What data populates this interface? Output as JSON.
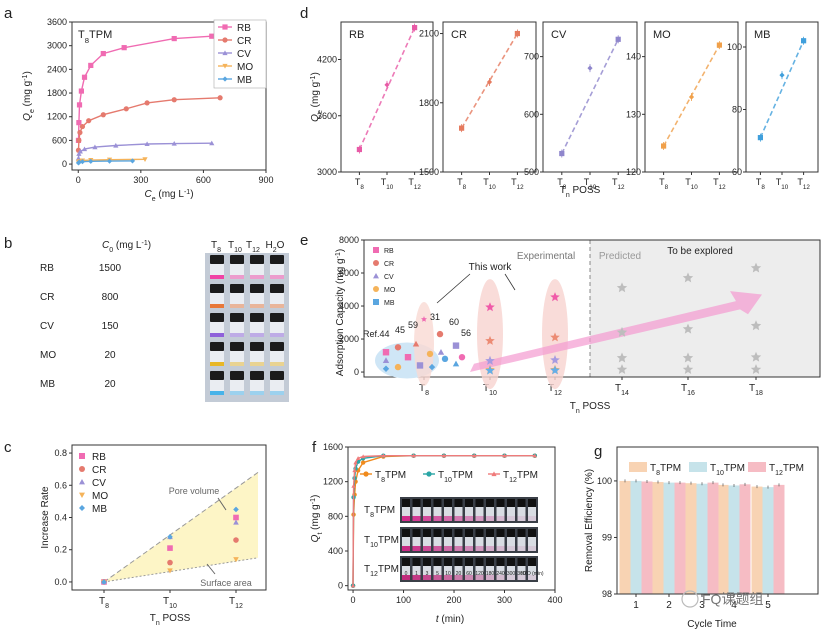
{
  "chart_data": [
    {
      "panel": "a",
      "type": "line",
      "title": "T8TPM",
      "xlabel": "Ce (mg L-1)",
      "ylabel": "Qe (mg g-1)",
      "xlim": [
        -30,
        900
      ],
      "ylim": [
        -150,
        3600
      ],
      "xticks": [
        0,
        300,
        600,
        900
      ],
      "yticks": [
        0,
        600,
        1200,
        1800,
        2400,
        3000,
        3600
      ],
      "series": [
        {
          "name": "RB",
          "color": "#f06bb2",
          "marker": "square",
          "x": [
            1,
            3,
            6,
            15,
            30,
            60,
            120,
            220,
            460,
            640
          ],
          "y": [
            600,
            1050,
            1500,
            1850,
            2200,
            2500,
            2800,
            2950,
            3180,
            3240
          ]
        },
        {
          "name": "CR",
          "color": "#e57a6e",
          "marker": "circle",
          "x": [
            1,
            3,
            8,
            20,
            50,
            120,
            230,
            330,
            460,
            680
          ],
          "y": [
            350,
            600,
            800,
            950,
            1100,
            1250,
            1400,
            1550,
            1630,
            1680
          ]
        },
        {
          "name": "CV",
          "color": "#9b91d6",
          "marker": "triangle",
          "x": [
            1,
            3,
            10,
            30,
            80,
            180,
            330,
            460,
            640
          ],
          "y": [
            150,
            260,
            320,
            380,
            430,
            470,
            510,
            520,
            530
          ]
        },
        {
          "name": "MO",
          "color": "#f5b35a",
          "marker": "triangle-down",
          "x": [
            1,
            5,
            20,
            60,
            150,
            320
          ],
          "y": [
            40,
            70,
            90,
            100,
            110,
            120
          ]
        },
        {
          "name": "MB",
          "color": "#5aa6e0",
          "marker": "diamond",
          "x": [
            1,
            5,
            20,
            60,
            150,
            260
          ],
          "y": [
            30,
            50,
            60,
            70,
            75,
            80
          ]
        }
      ]
    },
    {
      "panel": "d",
      "type": "scatter",
      "ylabel": "Qe (mg g-1)",
      "xlabel": "Tn POSS",
      "categories": [
        "T8",
        "T10",
        "T12"
      ],
      "subplots": [
        {
          "name": "RB",
          "color": "#e85aa6",
          "ylim": [
            3000,
            4600
          ],
          "yticks": [
            3000,
            3600,
            4200
          ],
          "values": [
            3240,
            3930,
            4540
          ]
        },
        {
          "name": "CR",
          "color": "#e57a5e",
          "ylim": [
            1500,
            2150
          ],
          "yticks": [
            1500,
            1800,
            2100
          ],
          "values": [
            1690,
            1890,
            2100
          ]
        },
        {
          "name": "CV",
          "color": "#8f86cc",
          "ylim": [
            500,
            760
          ],
          "yticks": [
            500,
            600,
            700
          ],
          "values": [
            532,
            680,
            730
          ]
        },
        {
          "name": "MO",
          "color": "#f0a04a",
          "ylim": [
            120,
            146
          ],
          "yticks": [
            120,
            130,
            140
          ],
          "values": [
            124.5,
            133,
            142
          ]
        },
        {
          "name": "MB",
          "color": "#3f9fdc",
          "ylim": [
            60,
            108
          ],
          "yticks": [
            60,
            80,
            100
          ],
          "values": [
            71,
            91,
            102
          ]
        }
      ]
    },
    {
      "panel": "e",
      "type": "scatter",
      "xlabel": "Tn POSS",
      "ylabel": "Adsorption Capacity (mg g-1)",
      "ylim": [
        -300,
        8000
      ],
      "yticks": [
        0,
        2000,
        4000,
        6000,
        8000
      ],
      "categories": [
        "T8",
        "T10",
        "T12",
        "T14",
        "T16",
        "T18"
      ],
      "legend": [
        "RB",
        "CR",
        "CV",
        "MO",
        "MB"
      ],
      "annotations": [
        "This work",
        "Experimental",
        "Predicted",
        "To be explored",
        "Ref.44",
        "45",
        "59",
        "31",
        "60",
        "56"
      ],
      "series": [
        {
          "name": "RB",
          "values": [
            3240,
            3930,
            4540
          ]
        },
        {
          "name": "CR",
          "values": [
            1690,
            1890,
            2100
          ]
        },
        {
          "name": "CV",
          "values": [
            532,
            680,
            730
          ]
        },
        {
          "name": "MO",
          "values": [
            124.5,
            133,
            142
          ]
        },
        {
          "name": "MB",
          "values": [
            71,
            91,
            102
          ]
        },
        {
          "name": "Predicted",
          "x": [
            "T14",
            "T14",
            "T14",
            "T14",
            "T16",
            "T16",
            "T16",
            "T16",
            "T18",
            "T18",
            "T18",
            "T18"
          ],
          "values": [
            5100,
            2400,
            850,
            150,
            5700,
            2600,
            850,
            150,
            6300,
            2800,
            900,
            150
          ]
        }
      ]
    },
    {
      "panel": "c",
      "type": "scatter",
      "xlabel": "Tn POSS",
      "ylabel": "Increase Rate",
      "ylim": [
        -0.05,
        0.85
      ],
      "yticks": [
        0.0,
        0.2,
        0.4,
        0.6,
        0.8
      ],
      "categories": [
        "T8",
        "T10",
        "T12"
      ],
      "annotations": [
        "Pore volume",
        "Surface area"
      ],
      "series": [
        {
          "name": "RB",
          "color": "#f06bb2",
          "values": [
            0,
            0.21,
            0.4
          ]
        },
        {
          "name": "CR",
          "color": "#e57a6e",
          "values": [
            0,
            0.12,
            0.26
          ]
        },
        {
          "name": "CV",
          "color": "#9b91d6",
          "values": [
            0,
            0.28,
            0.37
          ]
        },
        {
          "name": "MO",
          "color": "#f5b35a",
          "values": [
            0,
            0.07,
            0.14
          ]
        },
        {
          "name": "MB",
          "color": "#5aa6e0",
          "values": [
            0,
            0.28,
            0.45
          ]
        }
      ]
    },
    {
      "panel": "f",
      "type": "line",
      "xlabel": "t (min)",
      "ylabel": "Qt (mg g-1)",
      "xlim": [
        -10,
        400
      ],
      "ylim": [
        -50,
        1600
      ],
      "xticks": [
        0,
        100,
        200,
        300,
        400
      ],
      "yticks": [
        0,
        400,
        800,
        1200,
        1600
      ],
      "series": [
        {
          "name": "T8TPM",
          "color": "#f08a1c",
          "x": [
            0,
            1,
            3,
            5,
            10,
            20,
            60,
            120,
            180,
            240,
            300,
            360
          ],
          "y": [
            0,
            820,
            1050,
            1200,
            1330,
            1420,
            1490,
            1500,
            1500,
            1500,
            1500,
            1500
          ]
        },
        {
          "name": "T10TPM",
          "color": "#2aa6a6",
          "x": [
            0,
            1,
            3,
            5,
            10,
            20,
            60,
            120,
            180,
            240,
            300,
            360
          ],
          "y": [
            0,
            1020,
            1240,
            1350,
            1430,
            1470,
            1500,
            1500,
            1500,
            1500,
            1500,
            1500
          ]
        },
        {
          "name": "T12TPM",
          "color": "#ef7b7b",
          "x": [
            0,
            1,
            3,
            5,
            10,
            20,
            60,
            120,
            180,
            240,
            300,
            360
          ],
          "y": [
            0,
            1150,
            1330,
            1420,
            1470,
            1490,
            1500,
            1500,
            1500,
            1500,
            1500,
            1500
          ]
        }
      ],
      "inset_labels": [
        "T8TPM",
        "T10TPM",
        "T12TPM"
      ],
      "inset_times": [
        "0",
        "1",
        "3",
        "5",
        "10",
        "20",
        "60",
        "120",
        "180",
        "240",
        "300",
        "360",
        "H2O (min)"
      ]
    },
    {
      "panel": "g",
      "type": "bar",
      "xlabel": "Cycle Time",
      "ylabel": "Removal Efficiency (%)",
      "ylim": [
        98,
        100.6
      ],
      "yticks": [
        98,
        99,
        100
      ],
      "categories": [
        "1",
        "2",
        "3",
        "4",
        "5"
      ],
      "series": [
        {
          "name": "T8TPM",
          "color": "#f8d3b3",
          "values": [
            100.0,
            99.98,
            99.96,
            99.93,
            99.9
          ]
        },
        {
          "name": "T10TPM",
          "color": "#c6e3ea",
          "values": [
            100.0,
            99.97,
            99.95,
            99.92,
            99.89
          ]
        },
        {
          "name": "T12TPM",
          "color": "#f6bcc4",
          "values": [
            99.99,
            99.97,
            99.97,
            99.94,
            99.93
          ]
        }
      ]
    }
  ],
  "panel_b": {
    "header_conc": "C0 (mg L-1)",
    "header_tubes": [
      "T8",
      "T10",
      "T12",
      "H2O"
    ],
    "rows": [
      {
        "dye": "RB",
        "conc": "1500",
        "color": "#f03aa0"
      },
      {
        "dye": "CR",
        "conc": "800",
        "color": "#e8722e"
      },
      {
        "dye": "CV",
        "conc": "150",
        "color": "#8a5ad8"
      },
      {
        "dye": "MO",
        "conc": "20",
        "color": "#e8b41a"
      },
      {
        "dye": "MB",
        "conc": "20",
        "color": "#3fb0e8"
      }
    ]
  },
  "panel_letters": [
    "a",
    "b",
    "c",
    "d",
    "e",
    "f",
    "g"
  ],
  "watermark": "FQ课题组"
}
